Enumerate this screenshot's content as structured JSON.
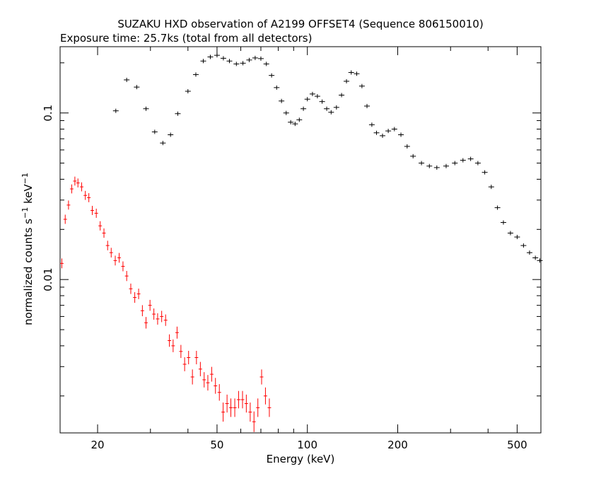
{
  "chart_data": {
    "type": "scatter",
    "title": "SUZAKU HXD observation of A2199 OFFSET4 (Sequence 806150010)",
    "subtitle": "Exposure time: 25.7ks (total from all detectors)",
    "xlabel": "Energy (keV)",
    "ylabel_main": "normalized counts s",
    "ylabel_exp1": "−1",
    "ylabel_mid": " keV",
    "ylabel_exp2": "−1",
    "x_scale": "log",
    "y_scale": "log",
    "xlim": [
      15,
      600
    ],
    "ylim": [
      0.0012,
      0.25
    ],
    "x_ticks": [
      {
        "v": 20,
        "label": "20"
      },
      {
        "v": 50,
        "label": "50"
      },
      {
        "v": 100,
        "label": "100"
      },
      {
        "v": 200,
        "label": "200"
      },
      {
        "v": 500,
        "label": "500"
      }
    ],
    "y_ticks": [
      {
        "v": 0.1,
        "label": "0.1"
      },
      {
        "v": 0.01,
        "label": "0.01"
      }
    ],
    "grid": false,
    "series": [
      {
        "color": "#000000",
        "points": [
          [
            23.0,
            0.103
          ],
          [
            25.0,
            0.158
          ],
          [
            27.0,
            0.143
          ],
          [
            29.0,
            0.106
          ],
          [
            31.0,
            0.077
          ],
          [
            33.0,
            0.066
          ],
          [
            35.0,
            0.074
          ],
          [
            37.0,
            0.099
          ],
          [
            40.0,
            0.135
          ],
          [
            42.5,
            0.17
          ],
          [
            45.0,
            0.205
          ],
          [
            47.5,
            0.217
          ],
          [
            50.0,
            0.222
          ],
          [
            52.5,
            0.213
          ],
          [
            55.0,
            0.205
          ],
          [
            58.0,
            0.197
          ],
          [
            61.0,
            0.199
          ],
          [
            64.0,
            0.208
          ],
          [
            67.0,
            0.214
          ],
          [
            70.0,
            0.212
          ],
          [
            73.0,
            0.197
          ],
          [
            76.0,
            0.168
          ],
          [
            79.0,
            0.142
          ],
          [
            82.0,
            0.118
          ],
          [
            85.0,
            0.1
          ],
          [
            88.0,
            0.088
          ],
          [
            91.0,
            0.086
          ],
          [
            94.0,
            0.091
          ],
          [
            97.0,
            0.106
          ],
          [
            100.0,
            0.121
          ],
          [
            104.0,
            0.13
          ],
          [
            108.0,
            0.126
          ],
          [
            112.0,
            0.117
          ],
          [
            116.0,
            0.106
          ],
          [
            120.0,
            0.101
          ],
          [
            125.0,
            0.108
          ],
          [
            130.0,
            0.128
          ],
          [
            135.0,
            0.155
          ],
          [
            140.0,
            0.175
          ],
          [
            146.0,
            0.172
          ],
          [
            152.0,
            0.145
          ],
          [
            158.0,
            0.11
          ],
          [
            164.0,
            0.085
          ],
          [
            170.0,
            0.076
          ],
          [
            178.0,
            0.073
          ],
          [
            186.0,
            0.078
          ],
          [
            195.0,
            0.08
          ],
          [
            205.0,
            0.074
          ],
          [
            215.0,
            0.063
          ],
          [
            225.0,
            0.055
          ],
          [
            240.0,
            0.05
          ],
          [
            255.0,
            0.048
          ],
          [
            270.0,
            0.047
          ],
          [
            290.0,
            0.048
          ],
          [
            310.0,
            0.05
          ],
          [
            330.0,
            0.052
          ],
          [
            350.0,
            0.053
          ],
          [
            370.0,
            0.05
          ],
          [
            390.0,
            0.044
          ],
          [
            410.0,
            0.036
          ],
          [
            430.0,
            0.027
          ],
          [
            450.0,
            0.022
          ],
          [
            475.0,
            0.019
          ],
          [
            500.0,
            0.018
          ],
          [
            525.0,
            0.016
          ],
          [
            550.0,
            0.0145
          ],
          [
            575.0,
            0.0135
          ],
          [
            595.0,
            0.013
          ]
        ]
      },
      {
        "color": "#ff0000",
        "points": [
          [
            15.2,
            0.0125
          ],
          [
            15.6,
            0.023
          ],
          [
            16.0,
            0.028
          ],
          [
            16.4,
            0.035
          ],
          [
            16.8,
            0.039
          ],
          [
            17.2,
            0.038
          ],
          [
            17.7,
            0.036
          ],
          [
            18.2,
            0.032
          ],
          [
            18.7,
            0.031
          ],
          [
            19.2,
            0.026
          ],
          [
            19.8,
            0.025
          ],
          [
            20.4,
            0.021
          ],
          [
            21.0,
            0.019
          ],
          [
            21.6,
            0.016
          ],
          [
            22.2,
            0.0145
          ],
          [
            22.9,
            0.013
          ],
          [
            23.6,
            0.0135
          ],
          [
            24.3,
            0.012
          ],
          [
            25.0,
            0.0105
          ],
          [
            25.8,
            0.0088
          ],
          [
            26.6,
            0.0078
          ],
          [
            27.4,
            0.0082
          ],
          [
            28.2,
            0.0065
          ],
          [
            29.0,
            0.0055
          ],
          [
            29.9,
            0.007
          ],
          [
            30.8,
            0.0062
          ],
          [
            31.7,
            0.0058
          ],
          [
            32.7,
            0.006
          ],
          [
            33.7,
            0.0057
          ],
          [
            34.7,
            0.0043
          ],
          [
            35.7,
            0.004
          ],
          [
            36.8,
            0.0048
          ],
          [
            37.9,
            0.0037
          ],
          [
            39.0,
            0.0031
          ],
          [
            40.2,
            0.0034
          ],
          [
            41.4,
            0.0026
          ],
          [
            42.7,
            0.0034
          ],
          [
            44.0,
            0.0029
          ],
          [
            45.3,
            0.0025
          ],
          [
            46.6,
            0.0024
          ],
          [
            48.0,
            0.0027
          ],
          [
            49.4,
            0.0023
          ],
          [
            50.9,
            0.0021
          ],
          [
            52.4,
            0.0016
          ],
          [
            54.0,
            0.0018
          ],
          [
            55.6,
            0.0017
          ],
          [
            57.3,
            0.0017
          ],
          [
            59.0,
            0.0019
          ],
          [
            60.8,
            0.0019
          ],
          [
            62.6,
            0.0018
          ],
          [
            64.5,
            0.0016
          ],
          [
            66.4,
            0.0014
          ],
          [
            68.4,
            0.0017
          ],
          [
            70.4,
            0.0026
          ],
          [
            72.5,
            0.002
          ],
          [
            74.7,
            0.0017
          ]
        ]
      }
    ]
  }
}
